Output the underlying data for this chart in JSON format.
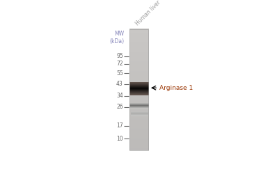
{
  "mw_label": "MW\n(kDa)",
  "mw_label_color": "#8888bb",
  "sample_label": "Human liver",
  "sample_label_color": "#999999",
  "mw_marks": [
    95,
    72,
    55,
    43,
    34,
    26,
    17,
    10
  ],
  "mw_mark_color": "#666666",
  "annotation_text": "← Arginase 1",
  "annotation_color": "#993300",
  "lane_bg_color": "#c8c6c4",
  "lane_bg_bottom": "#b0aeac",
  "band_main_color": "#0a0806",
  "band2_color": "#8a8880",
  "band3_color": "#c8c4c0",
  "fig_width": 3.85,
  "fig_height": 2.5,
  "dpi": 100
}
